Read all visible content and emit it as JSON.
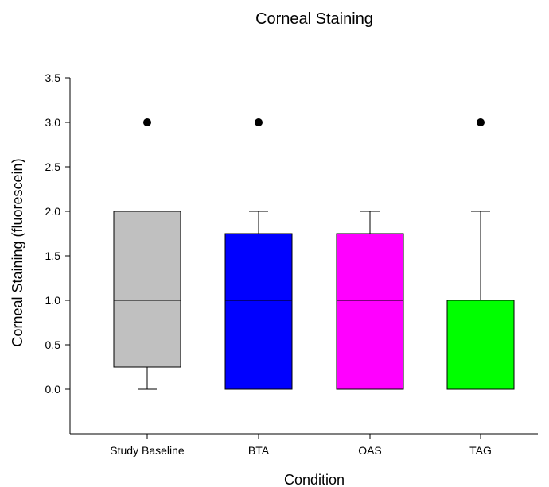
{
  "chart_data": {
    "type": "box",
    "title": "Corneal Staining",
    "xlabel": "Condition",
    "ylabel": "Corneal Staining (fluorescein)",
    "ylim": [
      -1.0,
      3.5
    ],
    "yticks": [
      "0.0",
      "0.5",
      "1.0",
      "1.5",
      "2.0",
      "2.5",
      "3.0",
      "3.5"
    ],
    "ytick_values": [
      0,
      0.5,
      1.0,
      1.5,
      2.0,
      2.5,
      3.0,
      3.5
    ],
    "grid": false,
    "categories": [
      "Study Baseline",
      "BTA",
      "OAS",
      "TAG"
    ],
    "boxes": [
      {
        "category": "Study Baseline",
        "whisker_low": 0.0,
        "q1": 0.25,
        "median": 1.0,
        "q3": 2.0,
        "whisker_high": 2.0,
        "outliers": [
          3.0
        ],
        "color": "#c0c0c0"
      },
      {
        "category": "BTA",
        "whisker_low": 0.0,
        "q1": 0.0,
        "median": 1.0,
        "q3": 1.75,
        "whisker_high": 2.0,
        "outliers": [
          3.0
        ],
        "color": "#0000ff"
      },
      {
        "category": "OAS",
        "whisker_low": 0.0,
        "q1": 0.0,
        "median": 1.0,
        "q3": 1.75,
        "whisker_high": 2.0,
        "outliers": [],
        "color": "#ff00ff"
      },
      {
        "category": "TAG",
        "whisker_low": 0.0,
        "q1": 0.0,
        "median": 1.0,
        "q3": 1.0,
        "whisker_high": 2.0,
        "outliers": [
          3.0
        ],
        "color": "#00ff00"
      }
    ]
  }
}
